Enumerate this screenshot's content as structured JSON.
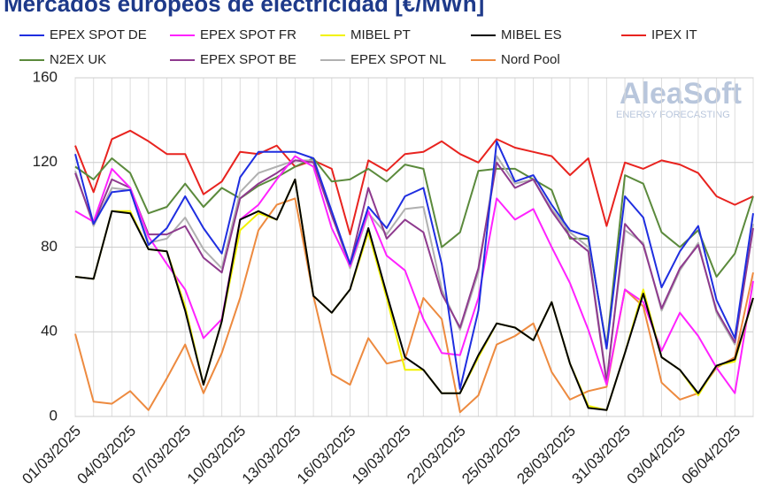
{
  "chart_data": {
    "type": "line",
    "title": "Mercados europeos de electricidad [€/MWh]",
    "categories": [
      "01/03/2025",
      null,
      null,
      "04/03/2025",
      null,
      null,
      "07/03/2025",
      null,
      null,
      "10/03/2025",
      null,
      null,
      "13/03/2025",
      null,
      null,
      "16/03/2025",
      null,
      null,
      "19/03/2025",
      null,
      null,
      "22/03/2025",
      null,
      null,
      "25/03/2025",
      null,
      null,
      "28/03/2025",
      null,
      null,
      "31/03/2025",
      null,
      null,
      "03/04/2025",
      null,
      null,
      "06/04/2025",
      null
    ],
    "ylim": [
      0,
      160
    ],
    "yticks": [
      0,
      40,
      80,
      120,
      160
    ],
    "grid": true,
    "series": [
      {
        "name": "IPEX IT",
        "color": "#e8231f",
        "values": [
          128,
          106,
          131,
          135,
          130,
          124,
          124,
          105,
          111,
          125,
          124,
          128,
          118,
          121,
          117,
          86,
          121,
          116,
          124,
          125,
          130,
          124,
          120,
          131,
          127,
          125,
          123,
          114,
          122,
          90,
          120,
          117,
          121,
          119,
          115,
          104,
          100,
          104
        ]
      },
      {
        "name": "N2EX UK",
        "color": "#5b8a3c",
        "values": [
          118,
          112,
          122,
          115,
          96,
          99,
          110,
          99,
          108,
          103,
          109,
          113,
          118,
          122,
          111,
          112,
          117,
          111,
          119,
          117,
          80,
          87,
          116,
          117,
          117,
          112,
          107,
          84,
          84,
          33,
          114,
          110,
          87,
          80,
          88,
          66,
          77,
          104
        ]
      },
      {
        "name": "EPEX SPOT NL",
        "color": "#b0b0b0",
        "values": [
          116,
          90,
          108,
          107,
          82,
          84,
          94,
          79,
          70,
          106,
          115,
          118,
          121,
          121,
          96,
          70,
          96,
          86,
          98,
          99,
          60,
          41,
          68,
          123,
          110,
          112,
          98,
          87,
          80,
          17,
          88,
          82,
          50,
          69,
          82,
          49,
          34,
          91
        ]
      },
      {
        "name": "EPEX SPOT BE",
        "color": "#8e3a8e",
        "values": [
          115,
          91,
          112,
          108,
          86,
          86,
          90,
          75,
          68,
          103,
          110,
          115,
          121,
          120,
          95,
          72,
          108,
          84,
          93,
          87,
          58,
          42,
          70,
          120,
          108,
          112,
          97,
          85,
          78,
          16,
          91,
          81,
          51,
          70,
          81,
          50,
          35,
          89
        ]
      },
      {
        "name": "Nord Pool",
        "color": "#ed8a3f",
        "values": [
          39,
          7,
          6,
          12,
          3,
          18,
          34,
          11,
          30,
          56,
          88,
          100,
          103,
          57,
          20,
          15,
          37,
          25,
          27,
          56,
          46,
          2,
          10,
          34,
          38,
          44,
          21,
          8,
          12,
          14,
          60,
          52,
          16,
          8,
          11,
          23,
          28,
          68
        ]
      },
      {
        "name": "EPEX SPOT FR",
        "color": "#ff22ff",
        "values": [
          97,
          92,
          117,
          108,
          85,
          72,
          60,
          37,
          46,
          93,
          100,
          112,
          123,
          118,
          89,
          71,
          97,
          76,
          69,
          46,
          30,
          29,
          56,
          103,
          93,
          98,
          80,
          63,
          41,
          15,
          60,
          54,
          31,
          49,
          38,
          23,
          11,
          64
        ]
      },
      {
        "name": "MIBEL PT",
        "color": "#f2f200",
        "values": [
          66,
          65,
          97,
          97,
          79,
          78,
          52,
          15,
          45,
          88,
          96,
          93,
          112,
          57,
          49,
          60,
          87,
          56,
          22,
          22,
          11,
          11,
          28,
          44,
          42,
          36,
          54,
          25,
          5,
          3,
          30,
          60,
          28,
          22,
          10,
          24,
          26,
          56
        ]
      },
      {
        "name": "MIBEL ES",
        "color": "#000000",
        "values": [
          66,
          65,
          97,
          96,
          79,
          78,
          50,
          15,
          45,
          93,
          97,
          93,
          112,
          57,
          49,
          60,
          89,
          58,
          28,
          22,
          11,
          11,
          29,
          44,
          42,
          36,
          54,
          25,
          4,
          3,
          30,
          58,
          28,
          22,
          11,
          24,
          27,
          56
        ]
      },
      {
        "name": "EPEX SPOT DE",
        "color": "#1f2ee0",
        "values": [
          124,
          91,
          106,
          107,
          81,
          89,
          104,
          89,
          77,
          113,
          125,
          125,
          125,
          122,
          97,
          72,
          99,
          89,
          104,
          108,
          72,
          13,
          50,
          130,
          111,
          114,
          100,
          88,
          85,
          32,
          104,
          94,
          61,
          78,
          90,
          55,
          37,
          96
        ]
      }
    ],
    "legend_order": [
      8,
      5,
      6,
      7,
      0,
      1,
      3,
      2,
      4
    ]
  },
  "logo": {
    "name": "AleaSoft",
    "tagline": "ENERGY FORECASTING"
  }
}
